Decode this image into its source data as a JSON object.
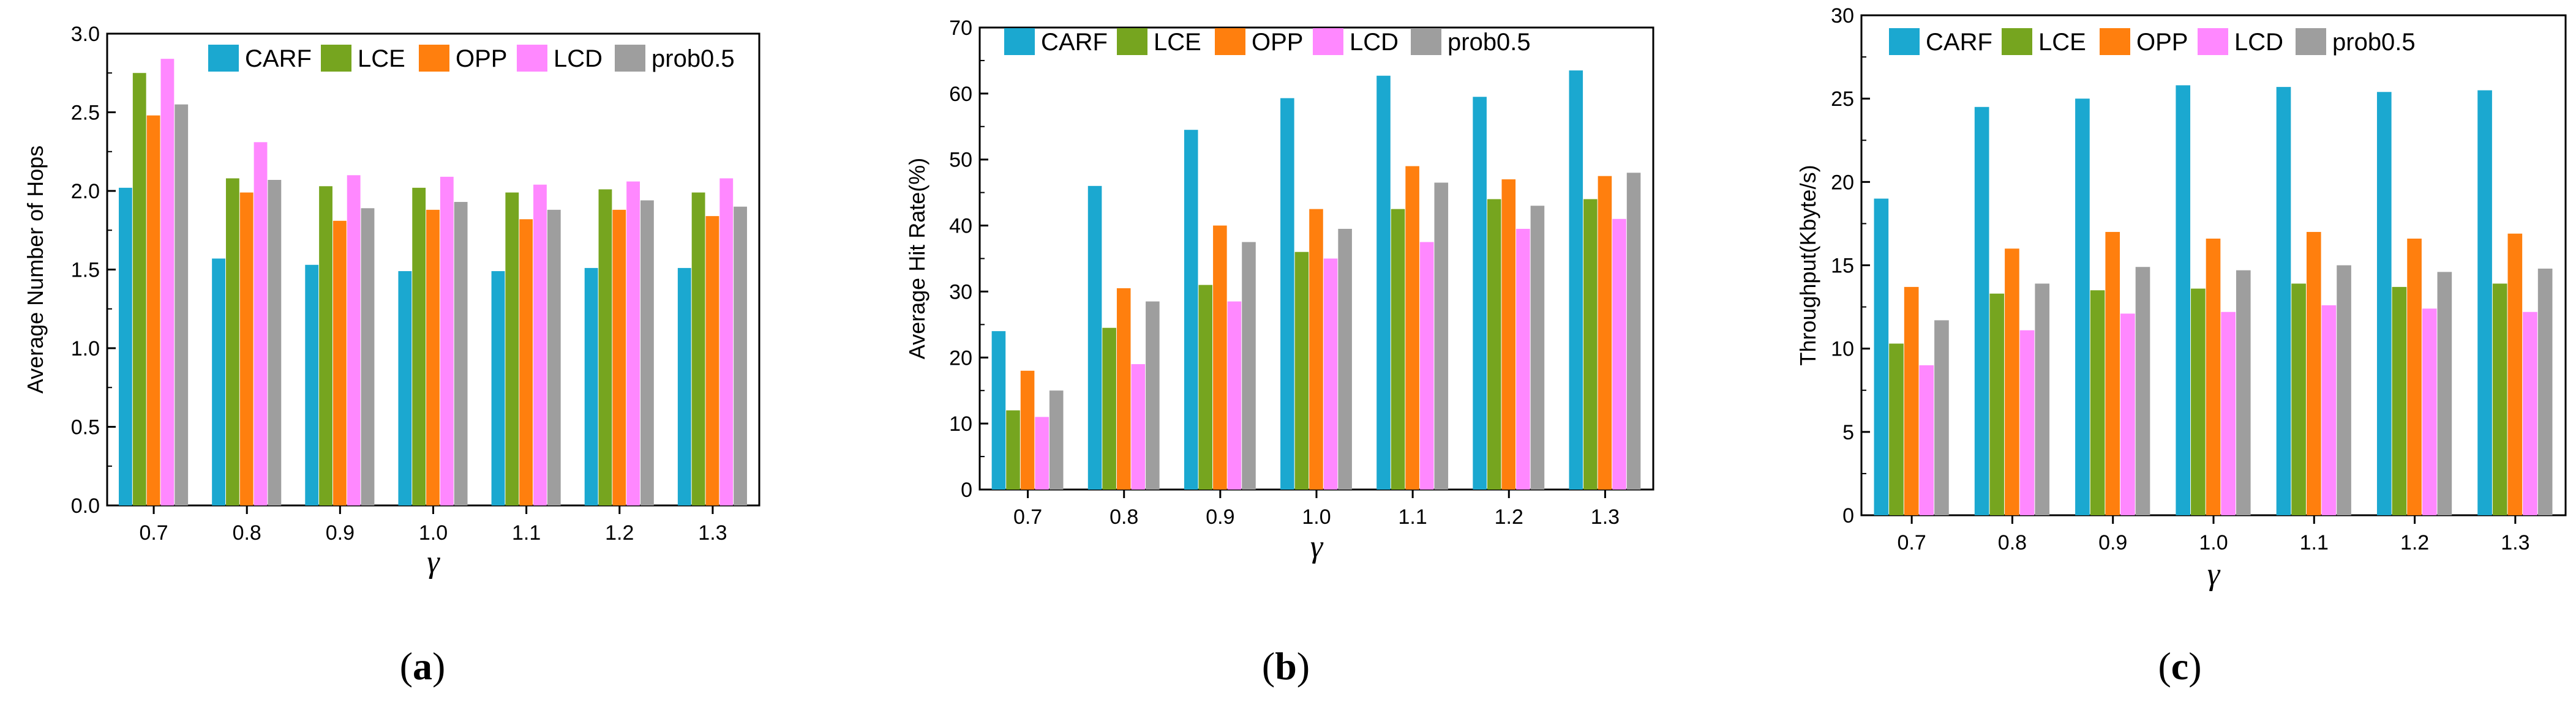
{
  "chart_data": [
    {
      "type": "bar",
      "panel_label": "a",
      "xlabel": "γ",
      "ylabel": "Average Number of Hops",
      "ylim": [
        0,
        3.0
      ],
      "yticks": [
        "0.0",
        "0.5",
        "1.0",
        "1.5",
        "2.0",
        "2.5",
        "3.0"
      ],
      "categories": [
        "0.7",
        "0.8",
        "0.9",
        "1.0",
        "1.1",
        "1.2",
        "1.3"
      ],
      "legend_position": "top-right",
      "series": [
        {
          "name": "CARF",
          "color": "#1ba8d0",
          "values": [
            2.02,
            1.57,
            1.53,
            1.49,
            1.49,
            1.51,
            1.51
          ]
        },
        {
          "name": "LCE",
          "color": "#76a51f",
          "values": [
            2.75,
            2.08,
            2.03,
            2.02,
            1.99,
            2.01,
            1.99
          ]
        },
        {
          "name": "OPP",
          "color": "#ff7f0e",
          "values": [
            2.48,
            1.99,
            1.81,
            1.88,
            1.82,
            1.88,
            1.84
          ]
        },
        {
          "name": "LCD",
          "color": "#ff88ff",
          "values": [
            2.84,
            2.31,
            2.1,
            2.09,
            2.04,
            2.06,
            2.08
          ]
        },
        {
          "name": "prob0.5",
          "color": "#9e9e9e",
          "values": [
            2.55,
            2.07,
            1.89,
            1.93,
            1.88,
            1.94,
            1.9
          ]
        }
      ]
    },
    {
      "type": "bar",
      "panel_label": "b",
      "xlabel": "γ",
      "ylabel": "Average Hit Rate(%)",
      "ylim": [
        0,
        70
      ],
      "yticks": [
        "0",
        "10",
        "20",
        "30",
        "40",
        "50",
        "60",
        "70"
      ],
      "categories": [
        "0.7",
        "0.8",
        "0.9",
        "1.0",
        "1.1",
        "1.2",
        "1.3"
      ],
      "legend_position": "top",
      "series": [
        {
          "name": "CARF",
          "color": "#1ba8d0",
          "values": [
            24.0,
            46.0,
            54.5,
            59.3,
            62.7,
            59.5,
            63.5
          ]
        },
        {
          "name": "LCE",
          "color": "#76a51f",
          "values": [
            12.0,
            24.5,
            31.0,
            36.0,
            42.5,
            44.0,
            44.0
          ]
        },
        {
          "name": "OPP",
          "color": "#ff7f0e",
          "values": [
            18.0,
            30.5,
            40.0,
            42.5,
            49.0,
            47.0,
            47.5
          ]
        },
        {
          "name": "LCD",
          "color": "#ff88ff",
          "values": [
            11.0,
            19.0,
            28.5,
            35.0,
            37.5,
            39.5,
            41.0
          ]
        },
        {
          "name": "prob0.5",
          "color": "#9e9e9e",
          "values": [
            15.0,
            28.5,
            37.5,
            39.5,
            46.5,
            43.0,
            48.0
          ]
        }
      ]
    },
    {
      "type": "bar",
      "panel_label": "c",
      "xlabel": "γ",
      "ylabel": "Throughput(Kbyte/s)",
      "ylim": [
        0,
        30
      ],
      "yticks": [
        "0",
        "5",
        "10",
        "15",
        "20",
        "25",
        "30"
      ],
      "categories": [
        "0.7",
        "0.8",
        "0.9",
        "1.0",
        "1.1",
        "1.2",
        "1.3"
      ],
      "legend_position": "top",
      "series": [
        {
          "name": "CARF",
          "color": "#1ba8d0",
          "values": [
            19.0,
            24.5,
            25.0,
            25.8,
            25.7,
            25.4,
            25.5
          ]
        },
        {
          "name": "LCE",
          "color": "#76a51f",
          "values": [
            10.3,
            13.3,
            13.5,
            13.6,
            13.9,
            13.7,
            13.9
          ]
        },
        {
          "name": "OPP",
          "color": "#ff7f0e",
          "values": [
            13.7,
            16.0,
            17.0,
            16.6,
            17.0,
            16.6,
            16.9
          ]
        },
        {
          "name": "LCD",
          "color": "#ff88ff",
          "values": [
            9.0,
            11.1,
            12.1,
            12.2,
            12.6,
            12.4,
            12.2
          ]
        },
        {
          "name": "prob0.5",
          "color": "#9e9e9e",
          "values": [
            11.7,
            13.9,
            14.9,
            14.7,
            15.0,
            14.6,
            14.8
          ]
        }
      ]
    }
  ]
}
